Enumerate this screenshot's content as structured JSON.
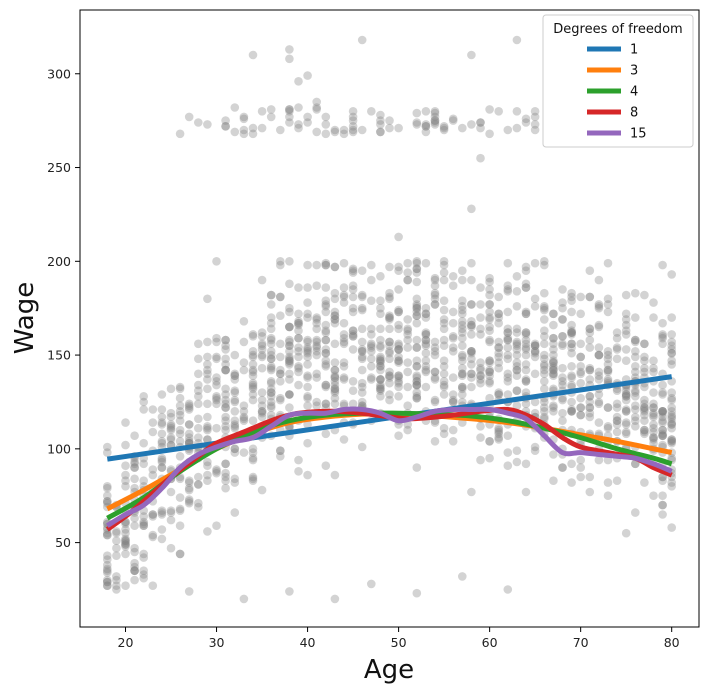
{
  "chart_data": {
    "type": "scatter",
    "title": "",
    "xlabel": "Age",
    "ylabel": "Wage",
    "xlim": [
      15,
      83
    ],
    "ylim": [
      5,
      334
    ],
    "xticks": [
      20,
      30,
      40,
      50,
      60,
      70,
      80
    ],
    "yticks": [
      50,
      100,
      150,
      200,
      250,
      300
    ],
    "grid": false,
    "scatter": {
      "color": "#808080",
      "alpha": 0.35,
      "sample_points": [
        [
          18,
          60
        ],
        [
          18,
          75
        ],
        [
          19,
          55
        ],
        [
          20,
          50
        ],
        [
          21,
          70
        ],
        [
          22,
          80
        ],
        [
          23,
          65
        ],
        [
          24,
          90
        ],
        [
          25,
          85
        ],
        [
          26,
          268
        ],
        [
          27,
          100
        ],
        [
          28,
          95
        ],
        [
          29,
          180
        ],
        [
          30,
          200
        ],
        [
          31,
          110
        ],
        [
          32,
          120
        ],
        [
          33,
          268
        ],
        [
          33,
          277
        ],
        [
          34,
          310
        ],
        [
          35,
          150
        ],
        [
          36,
          277
        ],
        [
          37,
          200
        ],
        [
          38,
          313
        ],
        [
          38,
          308
        ],
        [
          39,
          296
        ],
        [
          40,
          299
        ],
        [
          41,
          285
        ],
        [
          42,
          277
        ],
        [
          44,
          268
        ],
        [
          46,
          318
        ],
        [
          47,
          280
        ],
        [
          48,
          275
        ],
        [
          50,
          213
        ],
        [
          51,
          190
        ],
        [
          52,
          180
        ],
        [
          53,
          170
        ],
        [
          54,
          275
        ],
        [
          55,
          200
        ],
        [
          57,
          150
        ],
        [
          58,
          310
        ],
        [
          58,
          228
        ],
        [
          59,
          255
        ],
        [
          60,
          268
        ],
        [
          61,
          280
        ],
        [
          62,
          270
        ],
        [
          63,
          318
        ],
        [
          65,
          277
        ],
        [
          66,
          145
        ],
        [
          67,
          120
        ],
        [
          68,
          110
        ],
        [
          70,
          90
        ],
        [
          72,
          190
        ],
        [
          73,
          75
        ],
        [
          74,
          148
        ],
        [
          75,
          55
        ],
        [
          76,
          158
        ],
        [
          78,
          100
        ],
        [
          80,
          80
        ],
        [
          80,
          85
        ],
        [
          79,
          70
        ],
        [
          21,
          30
        ],
        [
          22,
          35
        ],
        [
          27,
          24
        ],
        [
          33,
          20
        ],
        [
          38,
          24
        ],
        [
          43,
          20
        ],
        [
          47,
          28
        ],
        [
          52,
          23
        ],
        [
          57,
          32
        ],
        [
          62,
          25
        ]
      ]
    },
    "legend": {
      "title": "Degrees of freedom",
      "placement": "top-right"
    },
    "series": [
      {
        "name": "1",
        "color": "#1f77b4",
        "x": [
          18,
          80
        ],
        "y": [
          94.5,
          138.5
        ]
      },
      {
        "name": "3",
        "color": "#ff7f0e",
        "x": [
          18,
          22,
          26,
          30,
          34,
          38,
          42,
          46,
          50,
          54,
          58,
          62,
          66,
          70,
          74,
          78,
          80
        ],
        "y": [
          68,
          78,
          89,
          100,
          108,
          114,
          117,
          118.5,
          118.5,
          117.5,
          116,
          114,
          111,
          107.5,
          104,
          100,
          98
        ]
      },
      {
        "name": "4",
        "color": "#2ca02c",
        "x": [
          18,
          22,
          26,
          30,
          34,
          38,
          42,
          46,
          50,
          54,
          58,
          62,
          66,
          70,
          74,
          78,
          80
        ],
        "y": [
          63,
          74,
          88,
          100,
          109,
          115,
          118,
          119,
          119,
          118.5,
          117.5,
          115,
          111,
          106,
          100,
          95,
          92
        ]
      },
      {
        "name": "8",
        "color": "#d62728",
        "x": [
          18,
          20,
          22,
          25,
          28,
          30,
          33,
          36,
          38,
          40,
          43,
          46,
          49,
          51,
          53,
          56,
          59,
          62,
          64,
          66,
          68,
          70,
          73,
          76,
          78,
          80
        ],
        "y": [
          57,
          64,
          72,
          85,
          96,
          103,
          109,
          115,
          118,
          119.5,
          120,
          119,
          117,
          116,
          116.5,
          118,
          120,
          121,
          118,
          113,
          106,
          101,
          98,
          95,
          90,
          86
        ]
      },
      {
        "name": "15",
        "color": "#9467bd",
        "x": [
          18,
          20,
          22,
          24,
          26,
          28,
          30,
          32,
          34,
          36,
          38,
          40,
          42,
          44,
          46,
          48,
          50,
          52,
          54,
          56,
          58,
          60,
          62,
          64,
          66,
          68,
          70,
          72,
          74,
          76,
          78,
          80
        ],
        "y": [
          59,
          65,
          70,
          79,
          90,
          97,
          101,
          104,
          106,
          112,
          118,
          119,
          119,
          121,
          121,
          119,
          115,
          117,
          120,
          121,
          121,
          121,
          119,
          116,
          107,
          98,
          98,
          97,
          96,
          95,
          92,
          88
        ]
      }
    ]
  }
}
